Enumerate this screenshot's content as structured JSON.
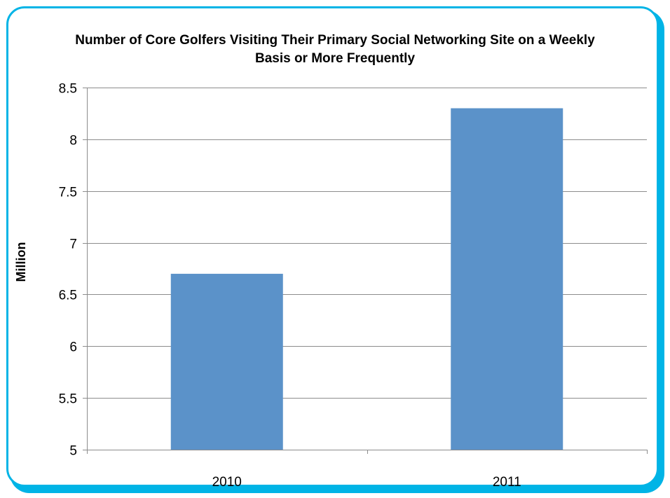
{
  "chart_data": {
    "type": "bar",
    "title": "Number of Core Golfers Visiting Their Primary Social Networking Site on a Weekly Basis or More Frequently",
    "ylabel": "Million",
    "xlabel": "",
    "categories": [
      "2010",
      "2011"
    ],
    "values": [
      6.7,
      8.3
    ],
    "ylim": [
      5,
      8.5
    ],
    "yticks": [
      5,
      5.5,
      6,
      6.5,
      7,
      7.5,
      8,
      8.5
    ],
    "ytick_labels": [
      "5",
      "5.5",
      "6",
      "6.5",
      "7",
      "7.5",
      "8",
      "8.5"
    ],
    "grid": true,
    "legend": "none",
    "bar_color": "#5b92c9",
    "grid_color": "#8c8c8c"
  },
  "frame": {
    "border_color": "#00b4e6"
  }
}
